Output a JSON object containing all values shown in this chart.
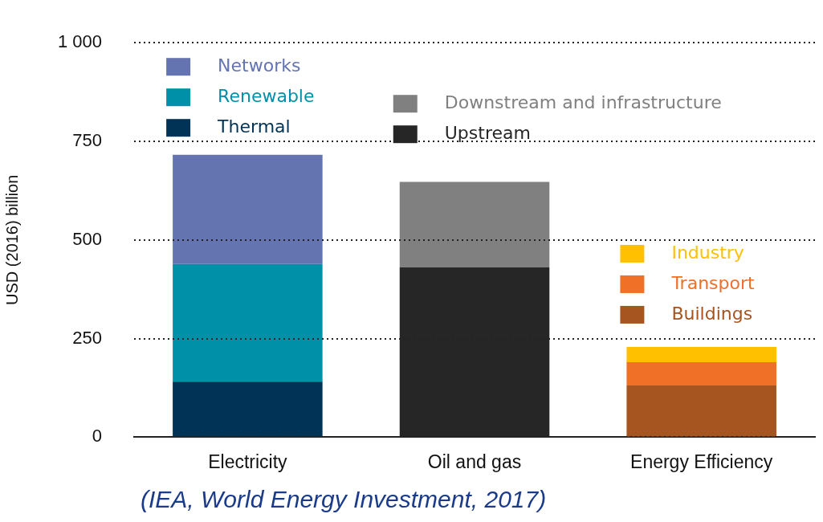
{
  "chart_data": {
    "type": "bar",
    "stacked": true,
    "categories": [
      "Electricity",
      "Oil and gas",
      "Energy Efficiency"
    ],
    "ylabel": "USD (2016) billion",
    "ylim": [
      0,
      1000
    ],
    "yticks": [
      0,
      250,
      500,
      750,
      {
        "value": 1000,
        "label": "1 000"
      }
    ],
    "grid": "y",
    "legend": "top",
    "annotations": [
      "(IEA, World Energy Investment, 2017)"
    ],
    "series": [
      {
        "name": "Thermal",
        "color": "#003356",
        "values": [
          141,
          null,
          null
        ]
      },
      {
        "name": "Renewable",
        "color": "#0090a8",
        "values": [
          298,
          null,
          null
        ]
      },
      {
        "name": "Networks",
        "color": "#6474b0",
        "values": [
          277,
          null,
          null
        ]
      },
      {
        "name": "Upstream",
        "color": "#262626",
        "values": [
          null,
          431,
          null
        ]
      },
      {
        "name": "Downstream and infrastructure",
        "color": "#808080",
        "values": [
          null,
          216,
          null
        ]
      },
      {
        "name": "Buildings",
        "color": "#a65420",
        "values": [
          null,
          null,
          131
        ]
      },
      {
        "name": "Transport",
        "color": "#f07028",
        "values": [
          null,
          null,
          59
        ]
      },
      {
        "name": "Industry",
        "color": "#ffc000",
        "values": [
          null,
          null,
          39
        ]
      }
    ]
  }
}
